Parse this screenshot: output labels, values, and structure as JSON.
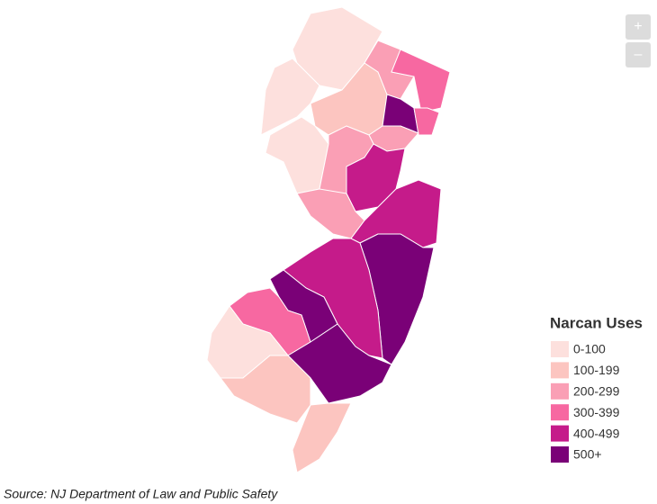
{
  "zoom": {
    "in": "+",
    "out": "–"
  },
  "legend": {
    "title": "Narcan Uses",
    "items": [
      {
        "label": "0-100",
        "color": "#fde0dd"
      },
      {
        "label": "100-199",
        "color": "#fcc5c0"
      },
      {
        "label": "200-299",
        "color": "#fa9fb5"
      },
      {
        "label": "300-399",
        "color": "#f768a1"
      },
      {
        "label": "400-499",
        "color": "#c51b8a"
      },
      {
        "label": "500+",
        "color": "#7a0177"
      }
    ]
  },
  "source": "Source: NJ Department of Law and Public Safety"
}
